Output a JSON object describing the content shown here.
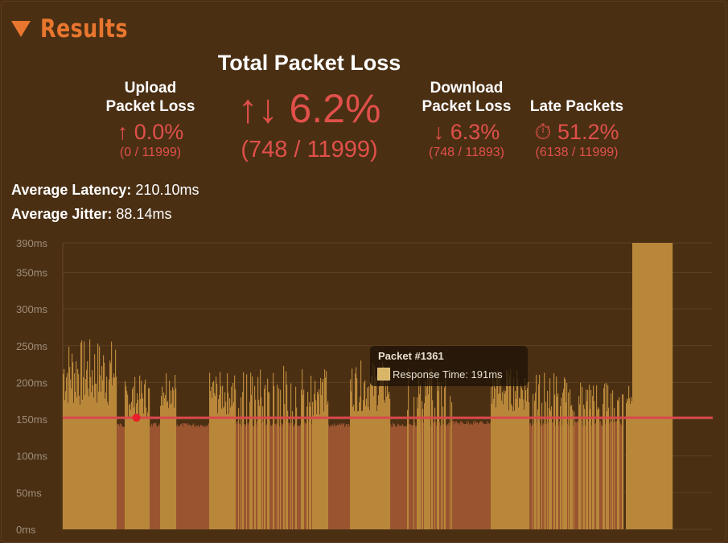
{
  "header": {
    "title": "Results"
  },
  "upload": {
    "label_line1": "Upload",
    "label_line2": "Packet Loss",
    "value": "↑ 0.0%",
    "detail": "(0 / 11999)"
  },
  "total": {
    "title": "Total Packet Loss",
    "value": "↑↓ 6.2%",
    "detail": "(748 / 11999)"
  },
  "download": {
    "label_line1": "Download",
    "label_line2": "Packet Loss",
    "value": "↓ 6.3%",
    "detail": "(748 / 11893)"
  },
  "late": {
    "label": "Late Packets",
    "value": "⏱ 51.2%",
    "detail": "(6138 / 11999)"
  },
  "metrics": {
    "latency_label": "Average Latency:",
    "latency_value": "210.10ms",
    "jitter_label": "Average Jitter:",
    "jitter_value": "88.14ms"
  },
  "tooltip": {
    "title": "Packet #1361",
    "line": "Response Time: 191ms"
  },
  "colors": {
    "background": "#4a2f13",
    "accent": "#e8762e",
    "loss": "#e0504a",
    "bar_late": "#b8873a",
    "bar_ok": "#9a5530",
    "threshold_line": "#d9484c",
    "grid": "#5e4120"
  },
  "icons": {
    "header_toggle": "caret-down-icon",
    "late": "stopwatch-icon"
  },
  "chart_data": {
    "type": "bar",
    "title": "",
    "xlabel": "",
    "ylabel": "",
    "ylim": [
      0,
      390
    ],
    "ytick_labels": [
      "0ms",
      "50ms",
      "100ms",
      "150ms",
      "200ms",
      "250ms",
      "300ms",
      "350ms",
      "390ms"
    ],
    "ytick_values": [
      0,
      50,
      100,
      150,
      200,
      250,
      300,
      350,
      390
    ],
    "x_range": [
      0,
      11999
    ],
    "threshold_ms": 152,
    "highlight_packet": 1361,
    "highlight_ms": 152,
    "tooltip_packet": 1361,
    "tooltip_ms": 191,
    "segments": [
      {
        "x_start": 0,
        "x_end": 1000,
        "level": "late",
        "typical_ms": 195,
        "peak_ms": 260
      },
      {
        "x_start": 1000,
        "x_end": 1150,
        "level": "normal",
        "typical_ms": 145,
        "peak_ms": 145
      },
      {
        "x_start": 1150,
        "x_end": 1600,
        "level": "late",
        "typical_ms": 180,
        "peak_ms": 210
      },
      {
        "x_start": 1600,
        "x_end": 1800,
        "level": "normal",
        "typical_ms": 145,
        "peak_ms": 145
      },
      {
        "x_start": 1800,
        "x_end": 2100,
        "level": "late",
        "typical_ms": 195,
        "peak_ms": 225
      },
      {
        "x_start": 2100,
        "x_end": 2700,
        "level": "normal",
        "typical_ms": 145,
        "peak_ms": 145
      },
      {
        "x_start": 2700,
        "x_end": 3200,
        "level": "late",
        "typical_ms": 185,
        "peak_ms": 215
      },
      {
        "x_start": 3200,
        "x_end": 3850,
        "level": "mixed",
        "typical_ms": 160,
        "peak_ms": 220
      },
      {
        "x_start": 3850,
        "x_end": 4600,
        "level": "mixed",
        "typical_ms": 165,
        "peak_ms": 225
      },
      {
        "x_start": 4600,
        "x_end": 4900,
        "level": "late",
        "typical_ms": 185,
        "peak_ms": 220
      },
      {
        "x_start": 4900,
        "x_end": 5300,
        "level": "normal",
        "typical_ms": 145,
        "peak_ms": 145
      },
      {
        "x_start": 5300,
        "x_end": 6050,
        "level": "late",
        "typical_ms": 190,
        "peak_ms": 230
      },
      {
        "x_start": 6050,
        "x_end": 6350,
        "level": "normal",
        "typical_ms": 145,
        "peak_ms": 145
      },
      {
        "x_start": 6350,
        "x_end": 7200,
        "level": "mixed",
        "typical_ms": 170,
        "peak_ms": 220
      },
      {
        "x_start": 7200,
        "x_end": 7900,
        "level": "normal",
        "typical_ms": 148,
        "peak_ms": 150
      },
      {
        "x_start": 7900,
        "x_end": 8600,
        "level": "late",
        "typical_ms": 190,
        "peak_ms": 220
      },
      {
        "x_start": 8600,
        "x_end": 9300,
        "level": "mixed",
        "typical_ms": 170,
        "peak_ms": 215
      },
      {
        "x_start": 9300,
        "x_end": 10350,
        "level": "mixed",
        "typical_ms": 160,
        "peak_ms": 200
      },
      {
        "x_start": 10400,
        "x_end": 10520,
        "level": "late",
        "typical_ms": 200,
        "peak_ms": 200
      },
      {
        "x_start": 10520,
        "x_end": 11250,
        "level": "late",
        "typical_ms": 390,
        "peak_ms": 390
      }
    ]
  }
}
